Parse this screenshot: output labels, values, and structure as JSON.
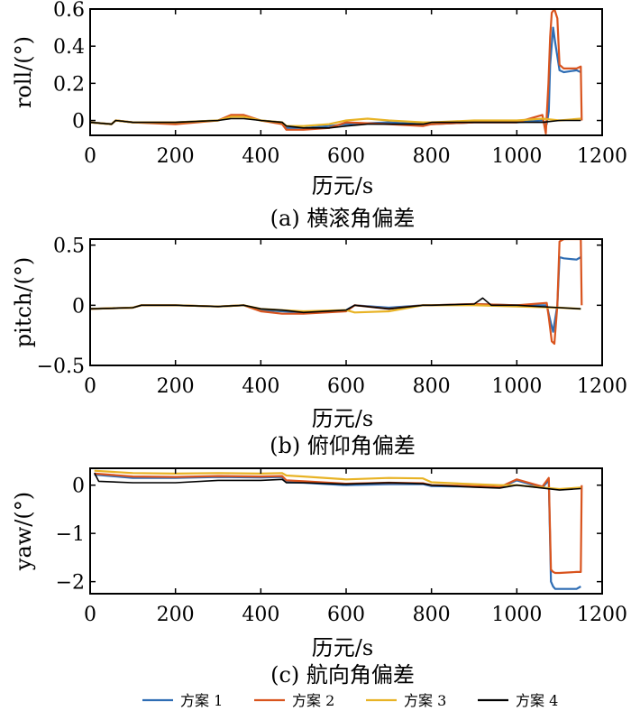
{
  "chart_data": [
    {
      "type": "line",
      "ylabel": "roll/(°)",
      "xlabel": "历元/s",
      "caption": "(a) 横滚角偏差",
      "xlim": [
        0,
        1200
      ],
      "ylim": [
        -0.08,
        0.6
      ],
      "xticks": [
        "0",
        "200",
        "400",
        "600",
        "800",
        "1000",
        "1200"
      ],
      "yticks": [
        {
          "v": 0,
          "t": "0"
        },
        {
          "v": 0.2,
          "t": "0.2"
        },
        {
          "v": 0.4,
          "t": "0.4"
        },
        {
          "v": 0.6,
          "t": "0.6"
        }
      ],
      "grid": false,
      "series": [
        {
          "name": "方案1",
          "x": [
            0,
            50,
            60,
            100,
            200,
            300,
            330,
            360,
            400,
            450,
            460,
            500,
            560,
            600,
            700,
            780,
            800,
            900,
            1000,
            1060,
            1070,
            1075,
            1078,
            1085,
            1090,
            1100,
            1110,
            1140,
            1150
          ],
          "y": [
            -0.01,
            -0.02,
            0.0,
            -0.01,
            -0.01,
            0.0,
            0.02,
            0.02,
            0.0,
            -0.01,
            -0.04,
            -0.04,
            -0.03,
            -0.02,
            -0.01,
            -0.02,
            -0.02,
            -0.01,
            -0.01,
            0.0,
            -0.02,
            0.05,
            0.3,
            0.5,
            0.42,
            0.27,
            0.26,
            0.27,
            0.26
          ]
        },
        {
          "name": "方案2",
          "x": [
            0,
            50,
            60,
            100,
            200,
            300,
            330,
            360,
            400,
            450,
            460,
            500,
            560,
            600,
            700,
            780,
            800,
            900,
            1000,
            1060,
            1068,
            1074,
            1078,
            1082,
            1088,
            1095,
            1100,
            1110,
            1140,
            1150,
            1152
          ],
          "y": [
            -0.01,
            -0.02,
            0.0,
            -0.01,
            -0.02,
            0.0,
            0.03,
            0.03,
            0.0,
            -0.02,
            -0.05,
            -0.05,
            -0.04,
            -0.01,
            -0.02,
            -0.03,
            -0.02,
            -0.01,
            -0.01,
            0.03,
            -0.07,
            0.2,
            0.45,
            0.58,
            0.6,
            0.55,
            0.3,
            0.28,
            0.28,
            0.29,
            0.0
          ]
        },
        {
          "name": "方案3",
          "x": [
            0,
            50,
            60,
            100,
            200,
            300,
            330,
            360,
            400,
            450,
            460,
            500,
            560,
            600,
            650,
            700,
            780,
            800,
            900,
            1000,
            1060,
            1100,
            1150
          ],
          "y": [
            -0.01,
            -0.02,
            0.0,
            -0.01,
            -0.01,
            0.0,
            0.02,
            0.02,
            0.0,
            -0.01,
            -0.03,
            -0.03,
            -0.02,
            0.0,
            0.01,
            0.0,
            -0.01,
            -0.01,
            0.0,
            0.0,
            0.01,
            0.0,
            0.01
          ]
        },
        {
          "name": "方案4",
          "x": [
            0,
            50,
            60,
            100,
            200,
            300,
            330,
            360,
            400,
            450,
            460,
            500,
            560,
            600,
            650,
            700,
            780,
            800,
            900,
            1000,
            1060,
            1100,
            1150
          ],
          "y": [
            -0.01,
            -0.02,
            0.0,
            -0.01,
            -0.01,
            0.0,
            0.01,
            0.01,
            0.0,
            -0.01,
            -0.03,
            -0.04,
            -0.04,
            -0.03,
            -0.02,
            -0.02,
            -0.02,
            -0.01,
            -0.01,
            -0.01,
            -0.01,
            0.0,
            0.0
          ]
        }
      ]
    },
    {
      "type": "line",
      "ylabel": "pitch/(°)",
      "xlabel": "历元/s",
      "caption": "(b) 俯仰角偏差",
      "xlim": [
        0,
        1200
      ],
      "ylim": [
        -0.5,
        0.55
      ],
      "xticks": [
        "0",
        "200",
        "400",
        "600",
        "800",
        "1000",
        "1200"
      ],
      "yticks": [
        {
          "v": -0.5,
          "t": "−0.5"
        },
        {
          "v": 0,
          "t": "0"
        },
        {
          "v": 0.5,
          "t": "0.5"
        }
      ],
      "grid": false,
      "series": [
        {
          "name": "方案1",
          "x": [
            0,
            100,
            120,
            200,
            300,
            360,
            400,
            450,
            500,
            600,
            620,
            700,
            780,
            800,
            900,
            1000,
            1070,
            1080,
            1085,
            1095,
            1100,
            1110,
            1140,
            1150
          ],
          "y": [
            -0.03,
            -0.02,
            0.0,
            0.0,
            -0.01,
            0.0,
            -0.04,
            -0.05,
            -0.06,
            -0.04,
            0.0,
            -0.02,
            0.0,
            0.0,
            0.01,
            0.0,
            0.0,
            -0.15,
            -0.22,
            0.0,
            0.4,
            0.39,
            0.38,
            0.4
          ]
        },
        {
          "name": "方案2",
          "x": [
            0,
            100,
            120,
            200,
            300,
            360,
            400,
            450,
            500,
            600,
            620,
            700,
            780,
            800,
            900,
            1000,
            1070,
            1075,
            1082,
            1088,
            1095,
            1100,
            1110,
            1140,
            1150,
            1152
          ],
          "y": [
            -0.03,
            -0.02,
            0.0,
            0.0,
            -0.01,
            0.0,
            -0.05,
            -0.07,
            -0.07,
            -0.05,
            0.0,
            -0.03,
            0.0,
            0.0,
            0.01,
            0.0,
            0.02,
            -0.1,
            -0.3,
            -0.32,
            0.0,
            0.53,
            0.55,
            0.55,
            0.55,
            0.0
          ]
        },
        {
          "name": "方案3",
          "x": [
            0,
            100,
            120,
            200,
            300,
            360,
            400,
            450,
            500,
            600,
            620,
            700,
            780,
            800,
            900,
            1000,
            1100,
            1150
          ],
          "y": [
            -0.03,
            -0.02,
            0.0,
            0.0,
            -0.01,
            0.0,
            -0.03,
            -0.04,
            -0.05,
            -0.04,
            -0.06,
            -0.05,
            0.0,
            0.0,
            0.0,
            -0.01,
            -0.02,
            -0.03
          ]
        },
        {
          "name": "方案4",
          "x": [
            0,
            100,
            120,
            200,
            300,
            360,
            400,
            450,
            500,
            600,
            620,
            700,
            780,
            800,
            900,
            920,
            940,
            1000,
            1100,
            1150
          ],
          "y": [
            -0.03,
            -0.02,
            0.0,
            0.0,
            -0.01,
            0.0,
            -0.03,
            -0.04,
            -0.06,
            -0.04,
            0.0,
            -0.03,
            0.0,
            0.0,
            0.01,
            0.06,
            0.0,
            0.0,
            -0.02,
            -0.03
          ]
        }
      ]
    },
    {
      "type": "line",
      "ylabel": "yaw/(°)",
      "xlabel": "历元/s",
      "caption": "(c) 航向角偏差",
      "xlim": [
        0,
        1200
      ],
      "ylim": [
        -2.25,
        0.35
      ],
      "xticks": [
        "0",
        "200",
        "400",
        "600",
        "800",
        "1000",
        "1200"
      ],
      "yticks": [
        {
          "v": -2,
          "t": "−2"
        },
        {
          "v": -1,
          "t": "−1"
        },
        {
          "v": 0,
          "t": "0"
        }
      ],
      "grid": false,
      "series": [
        {
          "name": "方案1",
          "x": [
            10,
            100,
            200,
            300,
            400,
            450,
            460,
            500,
            600,
            700,
            780,
            800,
            900,
            960,
            1000,
            1060,
            1075,
            1080,
            1085,
            1090,
            1100,
            1140,
            1150
          ],
          "y": [
            0.22,
            0.15,
            0.15,
            0.17,
            0.16,
            0.17,
            0.06,
            0.05,
            0.0,
            0.02,
            0.02,
            -0.02,
            -0.03,
            -0.05,
            0.1,
            -0.05,
            0.1,
            -2.0,
            -2.1,
            -2.15,
            -2.15,
            -2.15,
            -2.1
          ]
        },
        {
          "name": "方案2",
          "x": [
            10,
            100,
            200,
            300,
            400,
            450,
            460,
            500,
            600,
            700,
            780,
            800,
            900,
            960,
            1000,
            1060,
            1075,
            1080,
            1085,
            1090,
            1100,
            1140,
            1150,
            1152
          ],
          "y": [
            0.24,
            0.18,
            0.17,
            0.19,
            0.18,
            0.19,
            0.1,
            0.08,
            0.03,
            0.05,
            0.04,
            0.0,
            -0.02,
            -0.04,
            0.12,
            -0.03,
            0.15,
            -1.75,
            -1.8,
            -1.82,
            -1.82,
            -1.8,
            -1.8,
            0.0
          ]
        },
        {
          "name": "方案3",
          "x": [
            10,
            100,
            200,
            300,
            400,
            450,
            460,
            500,
            600,
            700,
            780,
            800,
            900,
            960,
            1000,
            1060,
            1100,
            1150
          ],
          "y": [
            0.3,
            0.25,
            0.24,
            0.25,
            0.24,
            0.25,
            0.2,
            0.18,
            0.12,
            0.15,
            0.14,
            0.06,
            0.02,
            0.0,
            0.0,
            -0.05,
            -0.08,
            -0.05
          ]
        },
        {
          "name": "方案4",
          "x": [
            10,
            20,
            100,
            200,
            300,
            400,
            450,
            460,
            500,
            600,
            700,
            780,
            800,
            900,
            960,
            1000,
            1060,
            1100,
            1150
          ],
          "y": [
            0.25,
            0.08,
            0.05,
            0.05,
            0.1,
            0.1,
            0.12,
            0.05,
            0.05,
            0.02,
            0.05,
            0.03,
            0.0,
            -0.04,
            -0.06,
            0.0,
            -0.06,
            -0.1,
            -0.07
          ]
        }
      ]
    }
  ],
  "legend": [
    {
      "label": "方案 1",
      "color": "#2E6DB4"
    },
    {
      "label": "方案 2",
      "color": "#D9541E"
    },
    {
      "label": "方案 3",
      "color": "#E8B325"
    },
    {
      "label": "方案 4",
      "color": "#000000"
    }
  ]
}
